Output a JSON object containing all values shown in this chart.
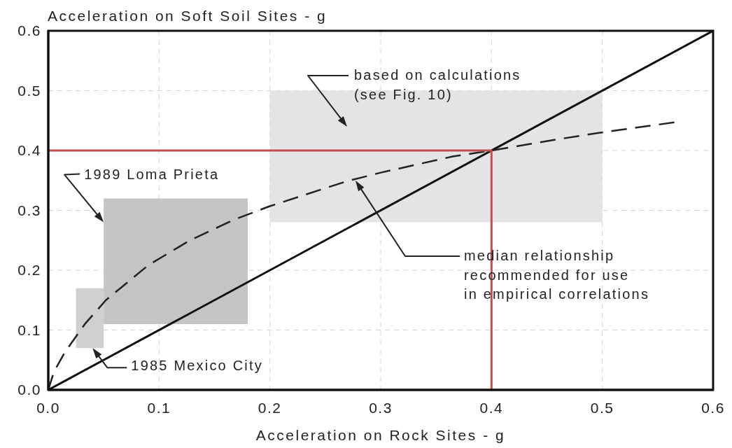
{
  "chart_data": {
    "type": "line",
    "xlabel": "Acceleration on Rock Sites - g",
    "ylabel": "Acceleration on Soft Soil Sites - g",
    "xlim": [
      0,
      0.6
    ],
    "ylim": [
      0,
      0.6
    ],
    "xticks": [
      {
        "value": 0,
        "label": "0.0"
      },
      0.1,
      0.2,
      0.3,
      0.4,
      0.5,
      0.6
    ],
    "yticks": [
      {
        "value": 0,
        "label": "0.0"
      },
      0.1,
      0.2,
      0.3,
      0.4,
      0.5,
      0.6
    ],
    "grid": true,
    "series": [
      {
        "color": "#e4e4e4",
        "x": [
          0.2,
          0.5
        ],
        "values": [
          null,
          null
        ],
        "lower": [
          0.28,
          0.28
        ],
        "upper": [
          0.5,
          0.5
        ]
      },
      {
        "color": "#c4c4c4",
        "x": [
          0.05,
          0.18
        ],
        "values": [
          null,
          null
        ],
        "lower": [
          0.11,
          0.11
        ],
        "upper": [
          0.32,
          0.32
        ]
      },
      {
        "color": "#d0d0d0",
        "x": [
          0.025,
          0.05
        ],
        "values": [
          null,
          null
        ],
        "lower": [
          0.07,
          0.07
        ],
        "upper": [
          0.17,
          0.17
        ]
      },
      {
        "color": "#111111",
        "line_style": "solid",
        "x": [
          0,
          0.6
        ],
        "values": [
          0,
          0.6
        ]
      },
      {
        "color": "#222222",
        "line_style": "dashed",
        "x": [
          0,
          0.005,
          0.015,
          0.033,
          0.052,
          0.09,
          0.127,
          0.167,
          0.2,
          0.27,
          0.3,
          0.365,
          0.4,
          0.454,
          0.495,
          0.565
        ],
        "values": [
          0,
          0.03,
          0.063,
          0.11,
          0.15,
          0.208,
          0.249,
          0.284,
          0.307,
          0.349,
          0.363,
          0.39,
          0.4,
          0.417,
          0.429,
          0.447
        ]
      },
      {
        "color": "#c0504d",
        "line_style": "solid",
        "x": [
          0,
          0.4,
          0.4
        ],
        "values": [
          0.4,
          0.4,
          0
        ]
      }
    ],
    "annotations": [
      "based on calculations\n(see Fig. 10)",
      {
        "text": "1989 Loma Prieta",
        "x": 0.05,
        "y": 0.28
      },
      "median relationship\nrecommended for use\nin empirical correlations",
      {
        "text": "1985 Mexico City",
        "x": 0.04,
        "y": 0.07
      }
    ]
  }
}
